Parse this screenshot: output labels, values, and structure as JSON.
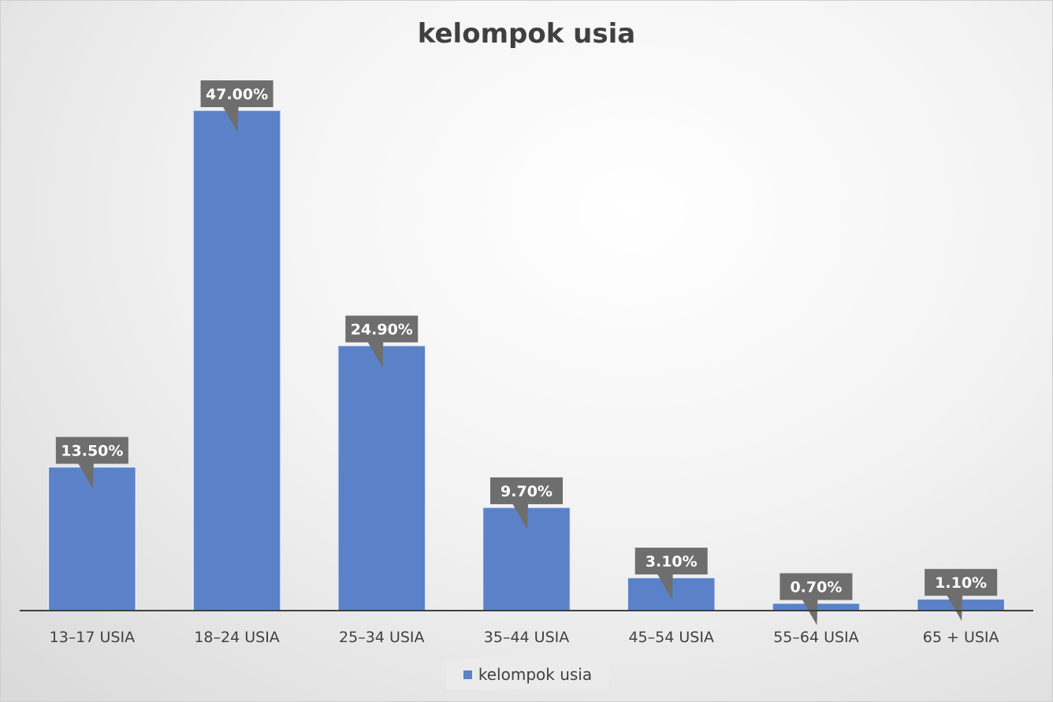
{
  "chart_data": {
    "type": "bar",
    "title": "kelompok usia",
    "categories": [
      "13–17 USIA",
      "18–24 USIA",
      "25–34 USIA",
      "35–44 USIA",
      "45–54 USIA",
      "55–64 USIA",
      "65 + USIA"
    ],
    "series": [
      {
        "name": "kelompok usia",
        "values": [
          13.5,
          47.0,
          24.9,
          9.7,
          3.1,
          0.7,
          1.1
        ],
        "labels": [
          "13.50%",
          "47.00%",
          "24.90%",
          "9.70%",
          "3.10%",
          "0.70%",
          "1.10%"
        ]
      }
    ],
    "ylim": [
      0,
      47
    ],
    "grid": false,
    "legend_position": "bottom"
  },
  "colors": {
    "bar": "#5b82c9",
    "bar_edge": "#e8eef8",
    "label_bg": "#6e6e6e",
    "axis": "#404040"
  }
}
